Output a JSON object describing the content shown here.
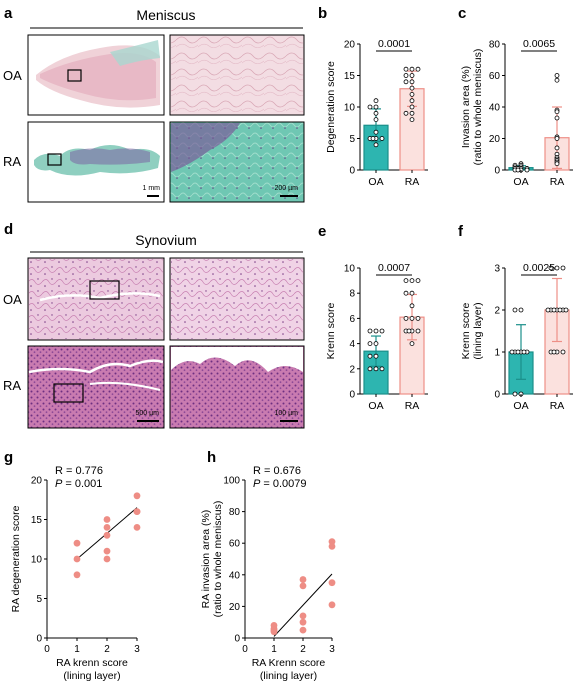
{
  "panels": {
    "a": {
      "letter": "a",
      "title": "Meniscus",
      "row_labels": [
        "OA",
        "RA"
      ],
      "scale_bars": [
        "1 mm",
        "200 µm"
      ]
    },
    "d": {
      "letter": "d",
      "title": "Synovium",
      "row_labels": [
        "OA",
        "RA"
      ],
      "scale_bars": [
        "500 µm",
        "100 µm"
      ]
    }
  },
  "colors": {
    "oa_fill": "#2db5b0",
    "oa_stroke": "#1a8f8a",
    "ra_fill": "#fbe1de",
    "ra_stroke": "#ee8f87",
    "scatter": "#ee8d85",
    "meniscus_oa_bg": "#f2dde2",
    "meniscus_ra_bg": "#6bc4b0",
    "synovium_bg": "#e8bcd4",
    "synovium_dark": "#c56fa8"
  },
  "chart_data": [
    {
      "letter": "b",
      "type": "bar",
      "categories": [
        "OA",
        "RA"
      ],
      "values": [
        7.1,
        12.9
      ],
      "sd": [
        2.6,
        2.8
      ],
      "points": [
        [
          11,
          10,
          10,
          9,
          8,
          6,
          5,
          5,
          5,
          5,
          4
        ],
        [
          16,
          16,
          16,
          15,
          15,
          14,
          14,
          13,
          12,
          11,
          10,
          9,
          9,
          8
        ]
      ],
      "xlabel": "",
      "ylabel": "Degeneration score",
      "ylim": [
        0,
        20
      ],
      "yticks": [
        0,
        5,
        10,
        15,
        20
      ],
      "pvalue": "0.0001"
    },
    {
      "letter": "c",
      "type": "bar",
      "categories": [
        "OA",
        "RA"
      ],
      "values": [
        1.5,
        20.5
      ],
      "sd": [
        1.2,
        19.5
      ],
      "points": [
        [
          4,
          3,
          3,
          2,
          2,
          1,
          1,
          1,
          1,
          0,
          0,
          0,
          0
        ],
        [
          60,
          57,
          38,
          37,
          33,
          21,
          20,
          14,
          10,
          8,
          7,
          6,
          5,
          4
        ]
      ],
      "xlabel": "",
      "ylabel": "Invasion area (%)",
      "ylabel2": "(ratio to whole meniscus)",
      "ylim": [
        0,
        80
      ],
      "yticks": [
        0,
        20,
        40,
        60,
        80
      ],
      "pvalue": "0.0065"
    },
    {
      "letter": "e",
      "type": "bar",
      "categories": [
        "OA",
        "RA"
      ],
      "values": [
        3.4,
        6.1
      ],
      "sd": [
        1.2,
        1.8
      ],
      "points": [
        [
          5,
          5,
          5,
          4,
          4,
          3,
          3,
          2,
          2,
          2
        ],
        [
          9,
          9,
          9,
          8,
          8,
          7,
          6,
          6,
          6,
          5,
          5,
          5,
          5,
          4
        ]
      ],
      "xlabel": "",
      "ylabel": "Krenn score",
      "ylim": [
        0,
        10
      ],
      "yticks": [
        0,
        2,
        4,
        6,
        8,
        10
      ],
      "pvalue": "0.0007"
    },
    {
      "letter": "f",
      "type": "bar",
      "categories": [
        "OA",
        "RA"
      ],
      "values": [
        1.0,
        2.0
      ],
      "sd": [
        0.65,
        0.75
      ],
      "points": [
        [
          2,
          2,
          1,
          1,
          1,
          1,
          1,
          1,
          0,
          0
        ],
        [
          3,
          3,
          3,
          2,
          2,
          2,
          2,
          2,
          2,
          2,
          1,
          1,
          1,
          1
        ]
      ],
      "xlabel": "",
      "ylabel": "Krenn score",
      "ylabel2": "(lining layer)",
      "ylim": [
        0,
        3
      ],
      "yticks": [
        0,
        1,
        2,
        3
      ],
      "pvalue": "0.0025"
    },
    {
      "letter": "g",
      "type": "scatter",
      "x": [
        1,
        1,
        1,
        2,
        2,
        2,
        2,
        2,
        3,
        3,
        3,
        3
      ],
      "y": [
        12,
        10,
        8,
        15,
        14,
        13,
        11,
        10,
        18,
        16,
        16,
        14
      ],
      "fit": {
        "x": [
          1,
          3
        ],
        "y": [
          10.0,
          16.5
        ]
      },
      "stat_r": "R = 0.776",
      "stat_p_label": "P",
      "stat_p_value": " = 0.001",
      "xlabel": "RA krenn score",
      "xlabel2": "(lining layer)",
      "ylabel": "RA degeneration score",
      "xlim": [
        0,
        3
      ],
      "ylim": [
        0,
        20
      ],
      "xticks": [
        0,
        1,
        2,
        3
      ],
      "yticks": [
        0,
        5,
        10,
        15,
        20
      ]
    },
    {
      "letter": "h",
      "type": "scatter",
      "x": [
        1,
        1,
        1,
        1,
        2,
        2,
        2,
        2,
        2,
        3,
        3,
        3,
        3
      ],
      "y": [
        8,
        6,
        5,
        4,
        37,
        33,
        14,
        10,
        5,
        61,
        58,
        35,
        21
      ],
      "fit": {
        "x": [
          1,
          3
        ],
        "y": [
          1.0,
          40.5
        ]
      },
      "stat_r": "R = 0.676",
      "stat_p_label": "P",
      "stat_p_value": " = 0.0079",
      "xlabel": "RA Krenn score",
      "xlabel2": "(lining layer)",
      "ylabel": "RA invasion area (%)",
      "ylabel2": "(ratio to whole meniscus)",
      "xlim": [
        0,
        3
      ],
      "ylim": [
        0,
        100
      ],
      "xticks": [
        0,
        1,
        2,
        3
      ],
      "yticks": [
        0,
        20,
        40,
        60,
        80,
        100
      ]
    }
  ]
}
